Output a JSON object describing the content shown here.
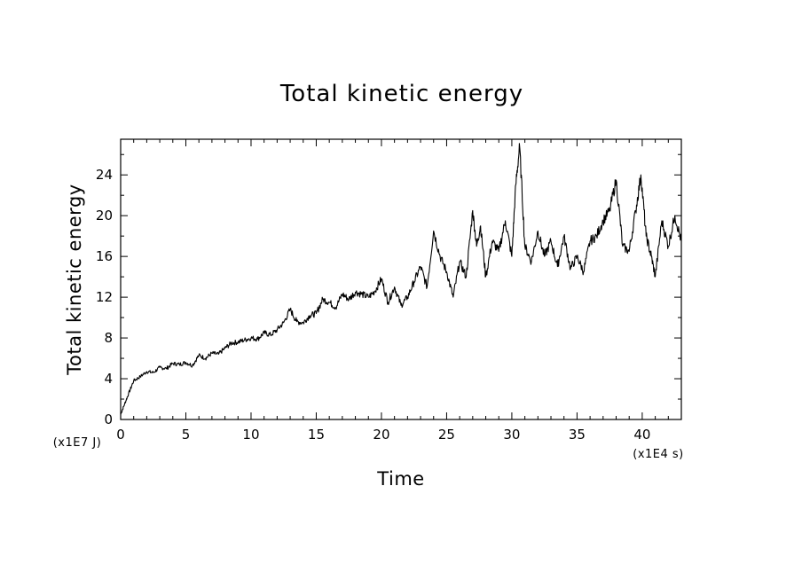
{
  "chart_data": {
    "type": "line",
    "title": "Total kinetic energy",
    "xlabel": "Time",
    "ylabel": "Total kinetic energy",
    "x_unit": "(x1E4 s)",
    "y_unit": "(x1E7 J)",
    "xlim": [
      0,
      43
    ],
    "ylim": [
      0,
      27.5
    ],
    "x_ticks": [
      "0",
      "5",
      "10",
      "15",
      "20",
      "25",
      "30",
      "35",
      "40"
    ],
    "y_ticks": [
      "0",
      "4",
      "8",
      "12",
      "16",
      "20",
      "24"
    ],
    "grid": false,
    "legend": "none",
    "line_color": "#000000",
    "series": [
      {
        "x": [
          0,
          0.3,
          0.6,
          1.0,
          1.5,
          2.0,
          2.5,
          3.0,
          3.5,
          4.0,
          4.5,
          5.0,
          5.5,
          6.0,
          6.5,
          7.0,
          7.5,
          8.0,
          8.5,
          9.0,
          9.5,
          10.0,
          10.5,
          11.0,
          11.5,
          12.0,
          12.5,
          13.0,
          13.5,
          14.0,
          14.5,
          15.0,
          15.5,
          16.0,
          16.5,
          17.0,
          17.5,
          18.0,
          18.5,
          19.0,
          19.5,
          20.0,
          20.5,
          21.0,
          21.5,
          22.0,
          22.5,
          23.0,
          23.5,
          24.0,
          24.5,
          25.0,
          25.5,
          26.0,
          26.5,
          27.0,
          27.3,
          27.6,
          28.0,
          28.5,
          29.0,
          29.5,
          30.0,
          30.3,
          30.6,
          31.0,
          31.5,
          32.0,
          32.5,
          33.0,
          33.5,
          34.0,
          34.5,
          35.0,
          35.5,
          36.0,
          36.5,
          37.0,
          37.5,
          38.0,
          38.5,
          39.0,
          39.5,
          39.9,
          40.3,
          40.7,
          41.0,
          41.5,
          42.0,
          42.5,
          43.0
        ],
        "y": [
          0.5,
          1.5,
          2.5,
          3.8,
          4.2,
          4.7,
          4.6,
          5.1,
          5.0,
          5.5,
          5.4,
          5.6,
          5.3,
          6.3,
          6.0,
          6.5,
          6.4,
          7.0,
          7.5,
          7.6,
          7.8,
          8.0,
          7.9,
          8.5,
          8.3,
          8.8,
          9.5,
          10.8,
          9.6,
          9.5,
          10.2,
          10.4,
          11.8,
          11.5,
          11.0,
          12.3,
          11.8,
          12.5,
          12.3,
          12.0,
          12.6,
          13.8,
          11.5,
          13.0,
          11.2,
          12.0,
          13.5,
          15.0,
          13.0,
          18.5,
          16.0,
          14.5,
          12.0,
          15.5,
          14.0,
          20.5,
          17.0,
          19.0,
          14.0,
          17.5,
          16.5,
          19.5,
          16.0,
          23.0,
          26.8,
          17.0,
          15.5,
          18.5,
          16.0,
          17.5,
          15.0,
          18.0,
          14.8,
          16.0,
          14.5,
          17.5,
          18.0,
          19.5,
          20.5,
          23.5,
          17.0,
          16.5,
          20.5,
          24.0,
          18.0,
          16.0,
          14.0,
          19.5,
          17.0,
          20.0,
          17.5
        ]
      }
    ]
  }
}
